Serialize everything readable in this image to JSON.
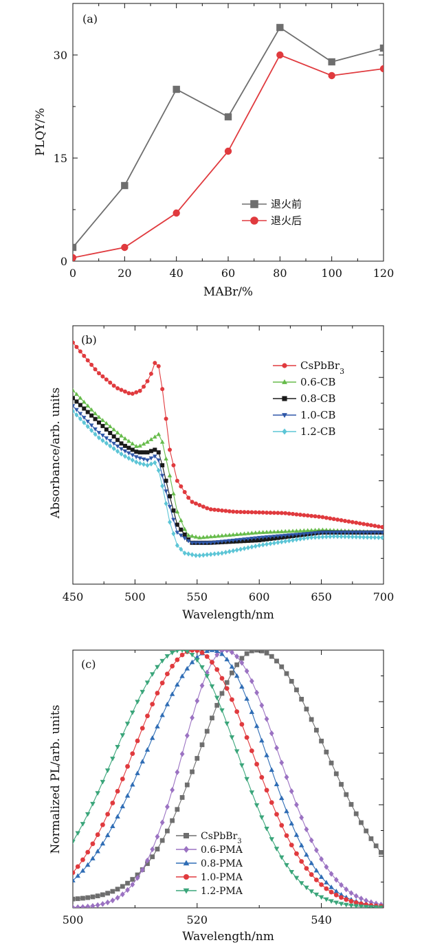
{
  "chart_data": [
    {
      "type": "line",
      "panel_label": "(a)",
      "xlabel": "MABr/%",
      "ylabel": "PLQY/%",
      "xlim": [
        0,
        120
      ],
      "ylim": [
        0,
        37.5
      ],
      "xticks": [
        "0",
        "20",
        "40",
        "60",
        "80",
        "100",
        "120"
      ],
      "yticks": [
        "0",
        "15",
        "30"
      ],
      "grid": false,
      "legend_position": "center-right",
      "x": [
        0,
        20,
        40,
        60,
        80,
        100,
        120
      ],
      "series": [
        {
          "name": "退火前",
          "color": "#6e6e6e",
          "marker": "square",
          "values": [
            2,
            11,
            25,
            21,
            34,
            29,
            31
          ]
        },
        {
          "name": "退火后",
          "color": "#e03a3e",
          "marker": "circle",
          "values": [
            0.5,
            2,
            7,
            16,
            30,
            27,
            28
          ]
        }
      ]
    },
    {
      "type": "line",
      "panel_label": "(b)",
      "xlabel": "Wavelength/nm",
      "ylabel": "Absorbance/arb. units",
      "xlim": [
        450,
        700
      ],
      "ylim": [
        0,
        1
      ],
      "xticks": [
        "450",
        "500",
        "550",
        "600",
        "650",
        "700"
      ],
      "grid": false,
      "legend_position": "top-right",
      "sample_step_nm": 3,
      "series": [
        {
          "name": "CsPbBr",
          "subscript": "3",
          "color": "#e03a3e",
          "marker": "circle",
          "knots": [
            [
              450,
              0.935
            ],
            [
              470,
              0.82
            ],
            [
              485,
              0.76
            ],
            [
              497,
              0.735
            ],
            [
              505,
              0.75
            ],
            [
              512,
              0.8
            ],
            [
              517,
              0.87
            ],
            [
              520,
              0.83
            ],
            [
              524,
              0.68
            ],
            [
              528,
              0.52
            ],
            [
              534,
              0.4
            ],
            [
              545,
              0.32
            ],
            [
              560,
              0.29
            ],
            [
              580,
              0.28
            ],
            [
              620,
              0.275
            ],
            [
              650,
              0.26
            ],
            [
              675,
              0.24
            ],
            [
              700,
              0.22
            ]
          ]
        },
        {
          "name": "0.6-CB",
          "color": "#66bb4a",
          "marker": "triangle",
          "knots": [
            [
              450,
              0.75
            ],
            [
              470,
              0.65
            ],
            [
              490,
              0.57
            ],
            [
              502,
              0.53
            ],
            [
              510,
              0.55
            ],
            [
              516,
              0.57
            ],
            [
              519,
              0.58
            ],
            [
              522,
              0.55
            ],
            [
              528,
              0.42
            ],
            [
              534,
              0.28
            ],
            [
              542,
              0.19
            ],
            [
              552,
              0.18
            ],
            [
              600,
              0.2
            ],
            [
              650,
              0.21
            ],
            [
              700,
              0.2
            ]
          ]
        },
        {
          "name": "0.8-CB",
          "color": "#1a1a1a",
          "marker": "square",
          "knots": [
            [
              450,
              0.72
            ],
            [
              470,
              0.63
            ],
            [
              490,
              0.54
            ],
            [
              502,
              0.51
            ],
            [
              510,
              0.51
            ],
            [
              516,
              0.52
            ],
            [
              519,
              0.51
            ],
            [
              522,
              0.46
            ],
            [
              528,
              0.34
            ],
            [
              534,
              0.23
            ],
            [
              545,
              0.16
            ],
            [
              560,
              0.16
            ],
            [
              600,
              0.17
            ],
            [
              650,
              0.2
            ],
            [
              700,
              0.2
            ]
          ]
        },
        {
          "name": "1.0-CB",
          "color": "#2f57a8",
          "marker": "triangle-down",
          "knots": [
            [
              450,
              0.69
            ],
            [
              470,
              0.59
            ],
            [
              490,
              0.52
            ],
            [
              502,
              0.49
            ],
            [
              510,
              0.48
            ],
            [
              516,
              0.495
            ],
            [
              519,
              0.48
            ],
            [
              522,
              0.42
            ],
            [
              528,
              0.3
            ],
            [
              534,
              0.2
            ],
            [
              545,
              0.16
            ],
            [
              560,
              0.16
            ],
            [
              600,
              0.18
            ],
            [
              650,
              0.2
            ],
            [
              700,
              0.2
            ]
          ]
        },
        {
          "name": "1.2-CB",
          "color": "#5cc5d6",
          "marker": "diamond",
          "knots": [
            [
              450,
              0.67
            ],
            [
              470,
              0.57
            ],
            [
              490,
              0.5
            ],
            [
              502,
              0.47
            ],
            [
              510,
              0.46
            ],
            [
              516,
              0.47
            ],
            [
              519,
              0.44
            ],
            [
              523,
              0.36
            ],
            [
              528,
              0.24
            ],
            [
              534,
              0.15
            ],
            [
              540,
              0.12
            ],
            [
              550,
              0.11
            ],
            [
              570,
              0.12
            ],
            [
              600,
              0.15
            ],
            [
              640,
              0.18
            ],
            [
              660,
              0.185
            ],
            [
              700,
              0.18
            ]
          ]
        }
      ]
    },
    {
      "type": "line",
      "panel_label": "(c)",
      "xlabel": "Wavelength/nm",
      "ylabel": "Normalized PL/arb. units",
      "xlim": [
        500,
        550
      ],
      "ylim": [
        0,
        1
      ],
      "xticks": [
        "500",
        "520",
        "540"
      ],
      "grid": false,
      "legend_position": "bottom-center",
      "sample_step_nm": 0.8,
      "series": [
        {
          "name": "CsPbBr",
          "subscript": "3",
          "color": "#6e6e6e",
          "marker": "square",
          "peak_nm": 529.5,
          "fwhm_left_nm": 21,
          "fwhm_right_nm": 26,
          "floor": 0.03
        },
        {
          "name": "0.6-PMA",
          "color": "#9b72c2",
          "marker": "diamond",
          "peak_nm": 524.5,
          "fwhm_left_nm": 16,
          "fwhm_right_nm": 20,
          "floor": 0.0
        },
        {
          "name": "0.8-PMA",
          "color": "#2f6db5",
          "marker": "triangle",
          "peak_nm": 522.5,
          "fwhm_left_nm": 25,
          "fwhm_right_nm": 20,
          "floor": 0.0
        },
        {
          "name": "1.0-PMA",
          "color": "#e03a3e",
          "marker": "circle",
          "peak_nm": 519.5,
          "fwhm_left_nm": 23,
          "fwhm_right_nm": 22,
          "floor": 0.0
        },
        {
          "name": "1.2-PMA",
          "color": "#3aa57a",
          "marker": "triangle-down",
          "peak_nm": 517.5,
          "fwhm_left_nm": 25,
          "fwhm_right_nm": 21,
          "floor": 0.0
        }
      ]
    }
  ]
}
